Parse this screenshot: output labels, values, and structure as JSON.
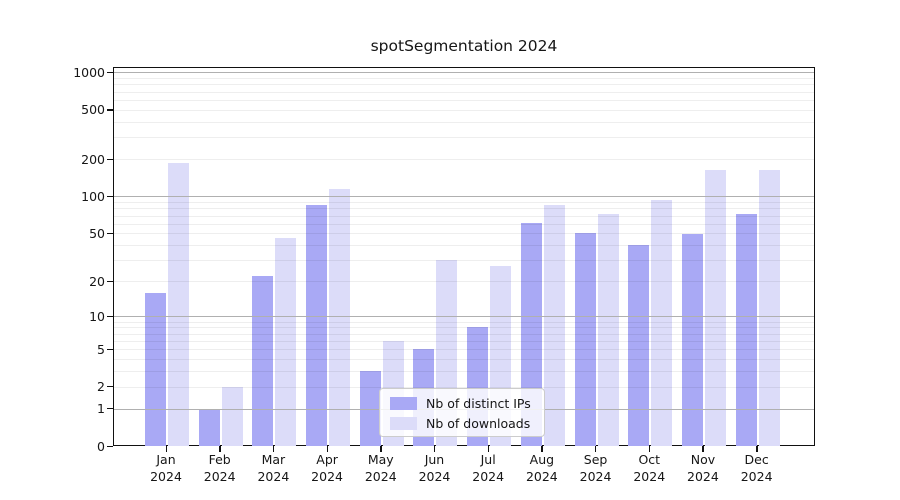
{
  "title": "spotSegmentation 2024",
  "chart_data": {
    "type": "bar",
    "title": "spotSegmentation 2024",
    "yscale": "log1p",
    "ylim": [
      0,
      1100
    ],
    "grid": true,
    "y_ticks": [
      1000,
      500,
      200,
      100,
      50,
      20,
      10,
      5,
      2,
      1,
      0
    ],
    "categories": [
      "Jan",
      "Feb",
      "Mar",
      "Apr",
      "May",
      "Jun",
      "Jul",
      "Aug",
      "Sep",
      "Oct",
      "Nov",
      "Dec"
    ],
    "x_year": "2024",
    "legend_position": "lower-center",
    "series": [
      {
        "name": "Nb of distinct IPs",
        "color": "#a9a9f5",
        "values": [
          16,
          1,
          22,
          85,
          3,
          5,
          8,
          61,
          50,
          40,
          49,
          72
        ]
      },
      {
        "name": "Nb of downloads",
        "color": "#dcdcf9",
        "values": [
          185,
          2,
          46,
          115,
          6,
          30,
          27,
          85,
          72,
          93,
          165,
          165
        ]
      }
    ]
  }
}
